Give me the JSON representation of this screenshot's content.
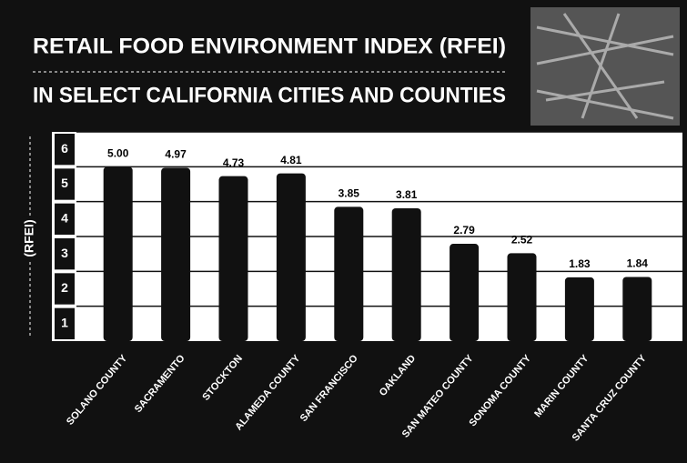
{
  "chart_data": {
    "type": "bar",
    "title": "RETAIL FOOD ENVIRONMENT INDEX (RFEI)",
    "subtitle": "IN SELECT CALIFORNIA CITIES AND COUNTIES",
    "y_label": "(RFEI)",
    "categories": [
      "SOLANO COUNTY",
      "SACRAMENTO",
      "STOCKTON",
      "ALAMEDA COUNTY",
      "SAN FRANCISCO",
      "OAKLAND",
      "SAN MATEO COUNTY",
      "SONOMA COUNTY",
      "MARIN COUNTY",
      "SANTA CRUZ COUNTY"
    ],
    "values": [
      5.0,
      4.97,
      4.73,
      4.81,
      3.85,
      3.81,
      2.79,
      2.52,
      1.83,
      1.84
    ],
    "value_labels": [
      "5.00",
      "4.97",
      "4.73",
      "4.81",
      "3.85",
      "3.81",
      "2.79",
      "2.52",
      "1.83",
      "1.84"
    ],
    "color": "#111111",
    "ylim": [
      0,
      6
    ],
    "yticks": [
      1,
      2,
      3,
      4,
      5,
      6
    ],
    "grid": true
  }
}
